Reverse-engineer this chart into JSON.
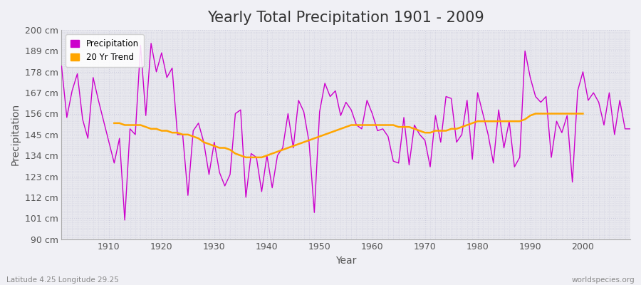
{
  "title": "Yearly Total Precipitation 1901 - 2009",
  "xlabel": "Year",
  "ylabel": "Precipitation",
  "background_color": "#f0f0f5",
  "plot_bg_color": "#e8e8ee",
  "line_color": "#cc00cc",
  "trend_color": "#ffa500",
  "ylim": [
    90,
    200
  ],
  "yticks": [
    90,
    101,
    112,
    123,
    134,
    145,
    156,
    167,
    178,
    189,
    200
  ],
  "ytick_labels": [
    "90 cm",
    "101 cm",
    "112 cm",
    "123 cm",
    "134 cm",
    "145 cm",
    "156 cm",
    "167 cm",
    "178 cm",
    "189 cm",
    "200 cm"
  ],
  "years": [
    1901,
    1902,
    1903,
    1904,
    1905,
    1906,
    1907,
    1908,
    1909,
    1910,
    1911,
    1912,
    1913,
    1914,
    1915,
    1916,
    1917,
    1918,
    1919,
    1920,
    1921,
    1922,
    1923,
    1924,
    1925,
    1926,
    1927,
    1928,
    1929,
    1930,
    1931,
    1932,
    1933,
    1934,
    1935,
    1936,
    1937,
    1938,
    1939,
    1940,
    1941,
    1942,
    1943,
    1944,
    1945,
    1946,
    1947,
    1948,
    1949,
    1950,
    1951,
    1952,
    1953,
    1954,
    1955,
    1956,
    1957,
    1958,
    1959,
    1960,
    1961,
    1962,
    1963,
    1964,
    1965,
    1966,
    1967,
    1968,
    1969,
    1970,
    1971,
    1972,
    1973,
    1974,
    1975,
    1976,
    1977,
    1978,
    1979,
    1980,
    1981,
    1982,
    1983,
    1984,
    1985,
    1986,
    1987,
    1988,
    1989,
    1990,
    1991,
    1992,
    1993,
    1994,
    1995,
    1996,
    1997,
    1998,
    1999,
    2000,
    2001,
    2002,
    2003,
    2004,
    2005,
    2006,
    2007,
    2008,
    2009
  ],
  "precipitation": [
    181,
    154,
    168,
    177,
    153,
    143,
    175,
    163,
    152,
    141,
    130,
    143,
    100,
    148,
    145,
    192,
    155,
    193,
    178,
    188,
    175,
    180,
    145,
    145,
    113,
    147,
    151,
    141,
    124,
    141,
    125,
    118,
    124,
    156,
    158,
    112,
    135,
    133,
    115,
    134,
    117,
    134,
    138,
    156,
    138,
    163,
    157,
    141,
    104,
    157,
    172,
    165,
    168,
    155,
    162,
    158,
    150,
    148,
    163,
    156,
    147,
    148,
    144,
    131,
    130,
    154,
    129,
    150,
    145,
    142,
    128,
    155,
    141,
    165,
    164,
    141,
    145,
    163,
    132,
    167,
    156,
    145,
    130,
    158,
    138,
    152,
    128,
    133,
    189,
    175,
    165,
    162,
    165,
    133,
    152,
    146,
    155,
    120,
    168,
    178,
    163,
    167,
    162,
    150,
    167,
    145,
    163,
    148,
    148
  ],
  "trend_years": [
    1911,
    1912,
    1913,
    1914,
    1915,
    1916,
    1917,
    1918,
    1919,
    1920,
    1921,
    1922,
    1923,
    1924,
    1925,
    1926,
    1927,
    1928,
    1929,
    1930,
    1931,
    1932,
    1933,
    1934,
    1935,
    1936,
    1937,
    1938,
    1939,
    1940,
    1941,
    1942,
    1943,
    1944,
    1945,
    1946,
    1947,
    1948,
    1949,
    1950,
    1951,
    1952,
    1953,
    1954,
    1955,
    1956,
    1957,
    1958,
    1959,
    1960,
    1961,
    1962,
    1963,
    1964,
    1965,
    1966,
    1967,
    1968,
    1969,
    1970,
    1971,
    1972,
    1973,
    1974,
    1975,
    1976,
    1977,
    1978,
    1979,
    1980,
    1981,
    1982,
    1983,
    1984,
    1985,
    1986,
    1987,
    1988,
    1989,
    1990,
    1991,
    1992,
    1993,
    1994,
    1995,
    1996,
    1997,
    1998,
    1999,
    2000
  ],
  "trend_values": [
    151,
    151,
    150,
    150,
    150,
    150,
    149,
    148,
    148,
    147,
    147,
    146,
    146,
    145,
    145,
    144,
    143,
    141,
    140,
    139,
    138,
    138,
    137,
    135,
    134,
    133,
    133,
    133,
    133,
    134,
    135,
    136,
    137,
    138,
    139,
    140,
    141,
    142,
    143,
    144,
    145,
    146,
    147,
    148,
    149,
    150,
    150,
    150,
    150,
    150,
    150,
    150,
    150,
    150,
    149,
    149,
    149,
    148,
    147,
    146,
    146,
    147,
    147,
    147,
    148,
    148,
    149,
    150,
    151,
    152,
    152,
    152,
    152,
    152,
    152,
    152,
    152,
    152,
    153,
    155,
    156,
    156,
    156,
    156,
    156,
    156,
    156,
    156,
    156,
    156
  ],
  "legend_items": [
    "Precipitation",
    "20 Yr Trend"
  ],
  "legend_colors": [
    "#cc00cc",
    "#ffa500"
  ],
  "grid_color": "#ccccdd",
  "title_fontsize": 15,
  "axis_fontsize": 9,
  "label_fontsize": 10,
  "watermark_left": "Latitude 4.25 Longitude 29.25",
  "watermark_right": "worldspecies.org",
  "xlim_left": 1901,
  "xlim_right": 2009
}
